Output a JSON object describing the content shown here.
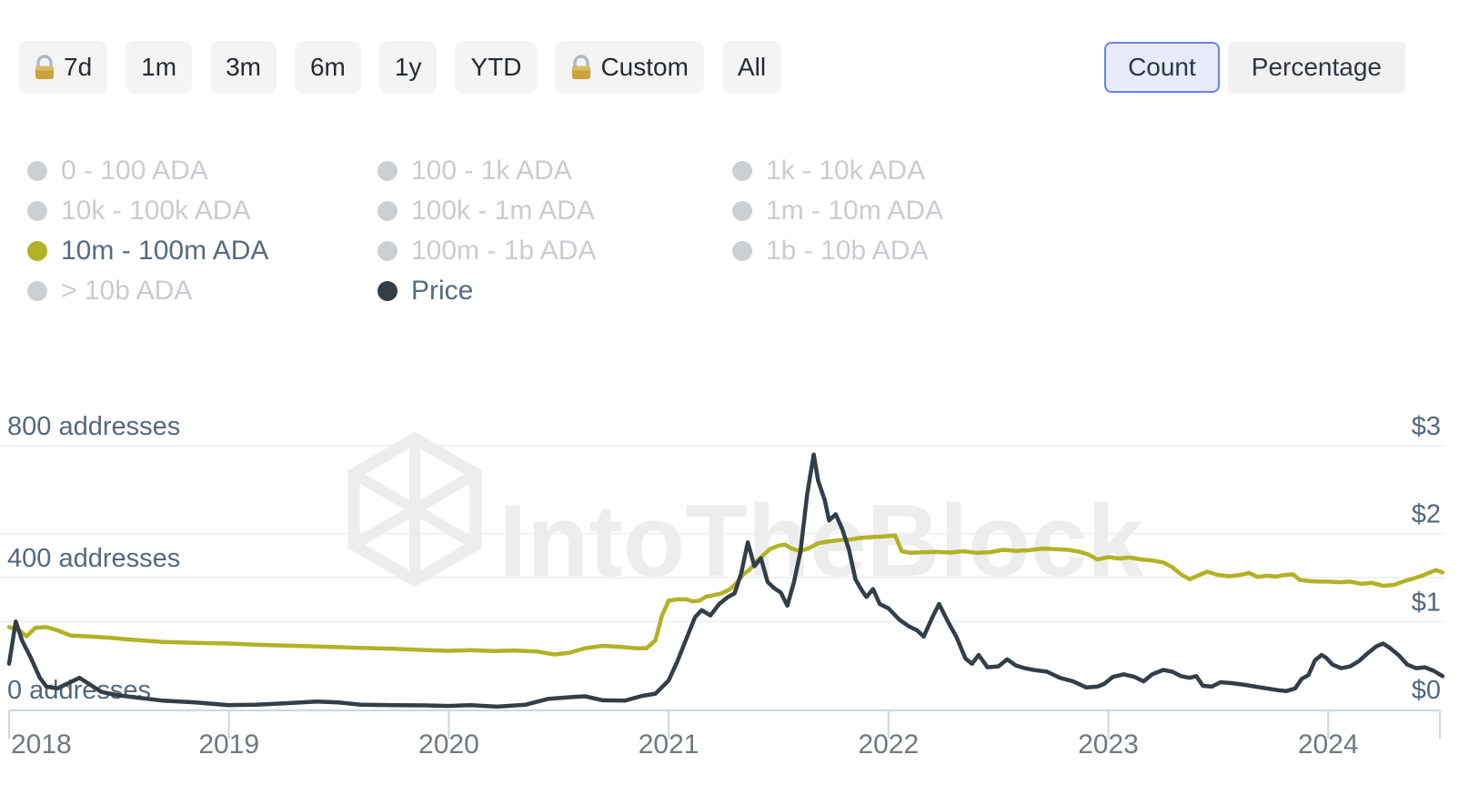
{
  "toolbar": {
    "ranges": [
      {
        "label": "7d",
        "locked": true
      },
      {
        "label": "1m",
        "locked": false
      },
      {
        "label": "3m",
        "locked": false
      },
      {
        "label": "6m",
        "locked": false
      },
      {
        "label": "1y",
        "locked": false
      },
      {
        "label": "YTD",
        "locked": false
      },
      {
        "label": "Custom",
        "locked": true
      },
      {
        "label": "All",
        "locked": false
      }
    ],
    "view_toggle": [
      {
        "label": "Count",
        "selected": true
      },
      {
        "label": "Percentage",
        "selected": false
      }
    ]
  },
  "legend": {
    "inactive_dot_color": "#cdd0d3",
    "columns": [
      [
        {
          "label": "0 - 100 ADA",
          "active": false
        },
        {
          "label": "10k - 100k ADA",
          "active": false
        },
        {
          "label": "10m - 100m ADA",
          "active": true,
          "color": "#b2b226"
        },
        {
          "label": "> 10b ADA",
          "active": false
        }
      ],
      [
        {
          "label": "100 - 1k ADA",
          "active": false
        },
        {
          "label": "100k - 1m ADA",
          "active": false
        },
        {
          "label": "100m - 1b ADA",
          "active": false
        },
        {
          "label": "Price",
          "active": true,
          "color": "#333e47"
        }
      ],
      [
        {
          "label": "1k - 10k ADA",
          "active": false
        },
        {
          "label": "1m - 10m ADA",
          "active": false
        },
        {
          "label": "1b - 10b ADA",
          "active": false
        }
      ]
    ]
  },
  "chart_data": {
    "type": "line",
    "watermark": "IntoTheBlock",
    "x_axis": {
      "labels": [
        "2018",
        "2019",
        "2020",
        "2021",
        "2022",
        "2023",
        "2024"
      ],
      "range": [
        2018,
        2024.52
      ]
    },
    "left_axis": {
      "unit": "addresses",
      "ticks": [
        0,
        400,
        800
      ],
      "labels": [
        "0 addresses",
        "400 addresses",
        "800 addresses"
      ],
      "range": [
        0,
        800
      ]
    },
    "right_axis": {
      "unit": "USD",
      "ticks": [
        0,
        1,
        2,
        3
      ],
      "labels": [
        "$0",
        "$1",
        "$2",
        "$3"
      ],
      "range": [
        0,
        3
      ]
    },
    "grid": true,
    "series": [
      {
        "name": "10m - 100m ADA",
        "axis": "left",
        "color": "#b2b226",
        "points": [
          [
            2018.0,
            250
          ],
          [
            2018.04,
            243
          ],
          [
            2018.08,
            222
          ],
          [
            2018.12,
            248
          ],
          [
            2018.17,
            250
          ],
          [
            2018.22,
            240
          ],
          [
            2018.28,
            224
          ],
          [
            2018.35,
            222
          ],
          [
            2018.45,
            218
          ],
          [
            2018.55,
            212
          ],
          [
            2018.7,
            205
          ],
          [
            2018.85,
            202
          ],
          [
            2019.0,
            200
          ],
          [
            2019.15,
            196
          ],
          [
            2019.3,
            193
          ],
          [
            2019.45,
            190
          ],
          [
            2019.6,
            187
          ],
          [
            2019.75,
            184
          ],
          [
            2019.9,
            180
          ],
          [
            2020.0,
            178
          ],
          [
            2020.1,
            180
          ],
          [
            2020.2,
            177
          ],
          [
            2020.3,
            179
          ],
          [
            2020.4,
            176
          ],
          [
            2020.48,
            167
          ],
          [
            2020.55,
            172
          ],
          [
            2020.62,
            186
          ],
          [
            2020.7,
            193
          ],
          [
            2020.78,
            190
          ],
          [
            2020.85,
            186
          ],
          [
            2020.9,
            186
          ],
          [
            2020.94,
            210
          ],
          [
            2020.97,
            285
          ],
          [
            2021.0,
            330
          ],
          [
            2021.04,
            334
          ],
          [
            2021.08,
            334
          ],
          [
            2021.11,
            328
          ],
          [
            2021.14,
            330
          ],
          [
            2021.17,
            342
          ],
          [
            2021.2,
            346
          ],
          [
            2021.24,
            352
          ],
          [
            2021.28,
            365
          ],
          [
            2021.31,
            385
          ],
          [
            2021.34,
            410
          ],
          [
            2021.37,
            425
          ],
          [
            2021.4,
            450
          ],
          [
            2021.43,
            468
          ],
          [
            2021.46,
            486
          ],
          [
            2021.5,
            497
          ],
          [
            2021.53,
            500
          ],
          [
            2021.56,
            488
          ],
          [
            2021.6,
            480
          ],
          [
            2021.64,
            490
          ],
          [
            2021.68,
            504
          ],
          [
            2021.73,
            510
          ],
          [
            2021.78,
            514
          ],
          [
            2021.83,
            516
          ],
          [
            2021.88,
            521
          ],
          [
            2021.93,
            523
          ],
          [
            2021.98,
            525
          ],
          [
            2022.03,
            528
          ],
          [
            2022.06,
            480
          ],
          [
            2022.1,
            475
          ],
          [
            2022.16,
            477
          ],
          [
            2022.22,
            478
          ],
          [
            2022.28,
            476
          ],
          [
            2022.34,
            480
          ],
          [
            2022.4,
            475
          ],
          [
            2022.46,
            477
          ],
          [
            2022.52,
            484
          ],
          [
            2022.58,
            481
          ],
          [
            2022.64,
            483
          ],
          [
            2022.7,
            488
          ],
          [
            2022.76,
            486
          ],
          [
            2022.82,
            484
          ],
          [
            2022.87,
            478
          ],
          [
            2022.91,
            470
          ],
          [
            2022.95,
            455
          ],
          [
            2023.0,
            462
          ],
          [
            2023.05,
            458
          ],
          [
            2023.1,
            461
          ],
          [
            2023.15,
            455
          ],
          [
            2023.2,
            452
          ],
          [
            2023.25,
            446
          ],
          [
            2023.29,
            432
          ],
          [
            2023.33,
            410
          ],
          [
            2023.37,
            395
          ],
          [
            2023.41,
            407
          ],
          [
            2023.45,
            418
          ],
          [
            2023.5,
            408
          ],
          [
            2023.55,
            404
          ],
          [
            2023.6,
            408
          ],
          [
            2023.64,
            414
          ],
          [
            2023.68,
            402
          ],
          [
            2023.72,
            406
          ],
          [
            2023.76,
            403
          ],
          [
            2023.8,
            408
          ],
          [
            2023.84,
            410
          ],
          [
            2023.87,
            393
          ],
          [
            2023.92,
            389
          ],
          [
            2023.96,
            388
          ],
          [
            2024.0,
            388
          ],
          [
            2024.05,
            386
          ],
          [
            2024.1,
            388
          ],
          [
            2024.15,
            381
          ],
          [
            2024.2,
            384
          ],
          [
            2024.25,
            375
          ],
          [
            2024.3,
            378
          ],
          [
            2024.34,
            388
          ],
          [
            2024.38,
            396
          ],
          [
            2024.42,
            404
          ],
          [
            2024.46,
            415
          ],
          [
            2024.49,
            423
          ],
          [
            2024.52,
            416
          ]
        ]
      },
      {
        "name": "Price",
        "axis": "right",
        "color": "#333e47",
        "points": [
          [
            2018.0,
            0.52
          ],
          [
            2018.03,
            1.0
          ],
          [
            2018.06,
            0.78
          ],
          [
            2018.1,
            0.58
          ],
          [
            2018.14,
            0.36
          ],
          [
            2018.17,
            0.26
          ],
          [
            2018.22,
            0.24
          ],
          [
            2018.27,
            0.3
          ],
          [
            2018.32,
            0.36
          ],
          [
            2018.37,
            0.28
          ],
          [
            2018.42,
            0.2
          ],
          [
            2018.5,
            0.16
          ],
          [
            2018.6,
            0.13
          ],
          [
            2018.7,
            0.1
          ],
          [
            2018.85,
            0.08
          ],
          [
            2019.0,
            0.05
          ],
          [
            2019.12,
            0.055
          ],
          [
            2019.25,
            0.07
          ],
          [
            2019.4,
            0.09
          ],
          [
            2019.5,
            0.08
          ],
          [
            2019.6,
            0.055
          ],
          [
            2019.75,
            0.05
          ],
          [
            2019.9,
            0.047
          ],
          [
            2020.0,
            0.04
          ],
          [
            2020.1,
            0.05
          ],
          [
            2020.22,
            0.032
          ],
          [
            2020.35,
            0.055
          ],
          [
            2020.45,
            0.12
          ],
          [
            2020.55,
            0.14
          ],
          [
            2020.62,
            0.15
          ],
          [
            2020.7,
            0.105
          ],
          [
            2020.8,
            0.1
          ],
          [
            2020.88,
            0.155
          ],
          [
            2020.94,
            0.18
          ],
          [
            2021.0,
            0.33
          ],
          [
            2021.04,
            0.55
          ],
          [
            2021.08,
            0.8
          ],
          [
            2021.12,
            1.05
          ],
          [
            2021.15,
            1.13
          ],
          [
            2021.19,
            1.07
          ],
          [
            2021.23,
            1.2
          ],
          [
            2021.27,
            1.28
          ],
          [
            2021.3,
            1.32
          ],
          [
            2021.33,
            1.55
          ],
          [
            2021.36,
            1.9
          ],
          [
            2021.39,
            1.63
          ],
          [
            2021.42,
            1.72
          ],
          [
            2021.45,
            1.45
          ],
          [
            2021.48,
            1.38
          ],
          [
            2021.51,
            1.33
          ],
          [
            2021.54,
            1.18
          ],
          [
            2021.57,
            1.45
          ],
          [
            2021.6,
            1.8
          ],
          [
            2021.63,
            2.45
          ],
          [
            2021.66,
            2.9
          ],
          [
            2021.68,
            2.6
          ],
          [
            2021.71,
            2.38
          ],
          [
            2021.73,
            2.15
          ],
          [
            2021.76,
            2.22
          ],
          [
            2021.79,
            2.05
          ],
          [
            2021.82,
            1.82
          ],
          [
            2021.85,
            1.48
          ],
          [
            2021.88,
            1.35
          ],
          [
            2021.9,
            1.28
          ],
          [
            2021.93,
            1.37
          ],
          [
            2021.96,
            1.2
          ],
          [
            2022.0,
            1.15
          ],
          [
            2022.05,
            1.02
          ],
          [
            2022.09,
            0.95
          ],
          [
            2022.13,
            0.9
          ],
          [
            2022.16,
            0.83
          ],
          [
            2022.2,
            1.05
          ],
          [
            2022.23,
            1.2
          ],
          [
            2022.27,
            1.0
          ],
          [
            2022.31,
            0.82
          ],
          [
            2022.35,
            0.58
          ],
          [
            2022.38,
            0.52
          ],
          [
            2022.41,
            0.62
          ],
          [
            2022.45,
            0.48
          ],
          [
            2022.5,
            0.49
          ],
          [
            2022.54,
            0.57
          ],
          [
            2022.58,
            0.5
          ],
          [
            2022.62,
            0.47
          ],
          [
            2022.66,
            0.45
          ],
          [
            2022.72,
            0.43
          ],
          [
            2022.78,
            0.36
          ],
          [
            2022.84,
            0.32
          ],
          [
            2022.9,
            0.25
          ],
          [
            2022.95,
            0.26
          ],
          [
            2022.98,
            0.29
          ],
          [
            2023.02,
            0.37
          ],
          [
            2023.07,
            0.4
          ],
          [
            2023.12,
            0.37
          ],
          [
            2023.16,
            0.32
          ],
          [
            2023.2,
            0.4
          ],
          [
            2023.25,
            0.45
          ],
          [
            2023.29,
            0.43
          ],
          [
            2023.33,
            0.38
          ],
          [
            2023.37,
            0.36
          ],
          [
            2023.4,
            0.38
          ],
          [
            2023.43,
            0.27
          ],
          [
            2023.47,
            0.26
          ],
          [
            2023.51,
            0.31
          ],
          [
            2023.56,
            0.3
          ],
          [
            2023.62,
            0.28
          ],
          [
            2023.67,
            0.26
          ],
          [
            2023.72,
            0.24
          ],
          [
            2023.77,
            0.22
          ],
          [
            2023.81,
            0.21
          ],
          [
            2023.85,
            0.24
          ],
          [
            2023.88,
            0.35
          ],
          [
            2023.91,
            0.39
          ],
          [
            2023.94,
            0.56
          ],
          [
            2023.97,
            0.62
          ],
          [
            2023.99,
            0.59
          ],
          [
            2024.02,
            0.51
          ],
          [
            2024.06,
            0.47
          ],
          [
            2024.1,
            0.49
          ],
          [
            2024.14,
            0.55
          ],
          [
            2024.18,
            0.64
          ],
          [
            2024.22,
            0.72
          ],
          [
            2024.25,
            0.75
          ],
          [
            2024.28,
            0.7
          ],
          [
            2024.32,
            0.62
          ],
          [
            2024.36,
            0.51
          ],
          [
            2024.4,
            0.47
          ],
          [
            2024.44,
            0.48
          ],
          [
            2024.48,
            0.44
          ],
          [
            2024.52,
            0.38
          ]
        ]
      }
    ]
  },
  "colors": {
    "axis_line": "#c9d7e4",
    "grid_line": "#f0f1f2",
    "axis_label": "#53687c",
    "year_label": "#6f7880",
    "watermark": "#ededee"
  }
}
